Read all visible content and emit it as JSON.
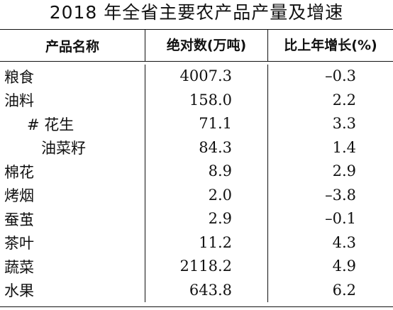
{
  "title": "2018 年全省主要农产品产量及增速",
  "table": {
    "headers": [
      "产品名称",
      "绝对数(万吨)",
      "比上年增长(%)"
    ],
    "rows": [
      {
        "name": "粮食",
        "value": "4007.3",
        "growth": "–0.3",
        "indent": 0
      },
      {
        "name": "油料",
        "value": "158.0",
        "growth": "2.2",
        "indent": 0
      },
      {
        "name": "# 花生",
        "value": "71.1",
        "growth": "3.3",
        "indent": 1
      },
      {
        "name": "油菜籽",
        "value": "84.3",
        "growth": "1.4",
        "indent": 2
      },
      {
        "name": "棉花",
        "value": "8.9",
        "growth": "2.9",
        "indent": 0
      },
      {
        "name": "烤烟",
        "value": "2.0",
        "growth": "–3.8",
        "indent": 0
      },
      {
        "name": "蚕茧",
        "value": "2.9",
        "growth": "–0.1",
        "indent": 0
      },
      {
        "name": "茶叶",
        "value": "11.2",
        "growth": "4.3",
        "indent": 0
      },
      {
        "name": "蔬菜",
        "value": "2118.2",
        "growth": "4.9",
        "indent": 0
      },
      {
        "name": "水果",
        "value": "643.8",
        "growth": "6.2",
        "indent": 0
      }
    ]
  }
}
